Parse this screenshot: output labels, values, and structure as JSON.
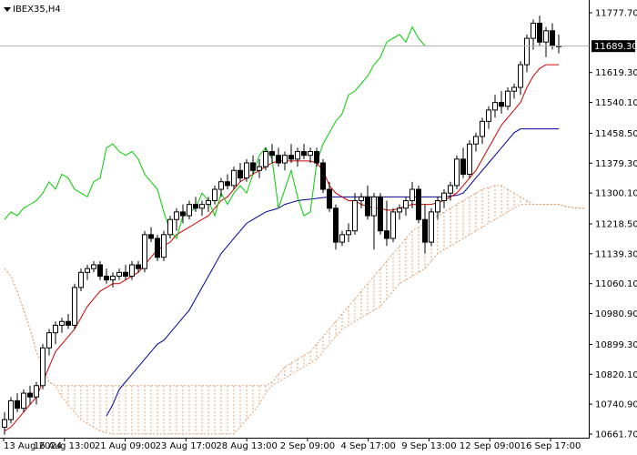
{
  "chart_data": {
    "type": "candlestick",
    "title": "IBEX35,H4",
    "ylim": [
      10661.7,
      11777.7
    ],
    "y_ticks": [
      "11777.70",
      "11619.30",
      "11540.10",
      "11458.50",
      "11379.30",
      "11300.10",
      "11218.50",
      "11139.30",
      "11060.10",
      "10980.90",
      "10899.30",
      "10820.10",
      "10740.90",
      "10661.70"
    ],
    "x_ticks": [
      "13 Aug 2024",
      "16 Aug 13:00",
      "21 Aug 09:00",
      "23 Aug 17:00",
      "28 Aug 13:00",
      "2 Sep 09:00",
      "4 Sep 17:00",
      "9 Sep 13:00",
      "12 Sep 09:00",
      "16 Sep 17:00"
    ],
    "current_price": "11689.30",
    "colors": {
      "tenkan": "#cc0000",
      "kijun": "#000099",
      "chikou": "#00cc00",
      "cloud": "#e0a070",
      "candle": "#000000",
      "background": "#ffffff",
      "price_tag_bg": "#000000"
    },
    "candles": [
      [
        10680,
        10720,
        10660,
        10700
      ],
      [
        10700,
        10760,
        10690,
        10750
      ],
      [
        10750,
        10770,
        10720,
        10730
      ],
      [
        10730,
        10780,
        10720,
        10770
      ],
      [
        10770,
        10790,
        10740,
        10760
      ],
      [
        10760,
        10800,
        10740,
        10790
      ],
      [
        10790,
        10900,
        10780,
        10890
      ],
      [
        10890,
        10940,
        10870,
        10930
      ],
      [
        10930,
        10960,
        10900,
        10950
      ],
      [
        10950,
        10970,
        10930,
        10960
      ],
      [
        10960,
        10980,
        10940,
        10950
      ],
      [
        10950,
        11060,
        10940,
        11050
      ],
      [
        11050,
        11100,
        11040,
        11090
      ],
      [
        11090,
        11110,
        11070,
        11100
      ],
      [
        11100,
        11120,
        11090,
        11110
      ],
      [
        11110,
        11120,
        11070,
        11080
      ],
      [
        11080,
        11100,
        11060,
        11070
      ],
      [
        11070,
        11090,
        11050,
        11080
      ],
      [
        11080,
        11100,
        11070,
        11090
      ],
      [
        11090,
        11110,
        11070,
        11080
      ],
      [
        11080,
        11120,
        11070,
        11110
      ],
      [
        11110,
        11120,
        11090,
        11100
      ],
      [
        11100,
        11200,
        11090,
        11190
      ],
      [
        11190,
        11210,
        11170,
        11180
      ],
      [
        11180,
        11190,
        11120,
        11130
      ],
      [
        11130,
        11200,
        11120,
        11190
      ],
      [
        11190,
        11240,
        11180,
        11230
      ],
      [
        11230,
        11260,
        11200,
        11250
      ],
      [
        11250,
        11270,
        11220,
        11240
      ],
      [
        11240,
        11280,
        11230,
        11270
      ],
      [
        11270,
        11290,
        11250,
        11260
      ],
      [
        11260,
        11280,
        11240,
        11270
      ],
      [
        11270,
        11290,
        11250,
        11280
      ],
      [
        11280,
        11320,
        11270,
        11310
      ],
      [
        11310,
        11340,
        11290,
        11330
      ],
      [
        11330,
        11350,
        11310,
        11320
      ],
      [
        11320,
        11370,
        11310,
        11360
      ],
      [
        11360,
        11380,
        11330,
        11340
      ],
      [
        11340,
        11390,
        11330,
        11380
      ],
      [
        11380,
        11400,
        11350,
        11360
      ],
      [
        11360,
        11390,
        11340,
        11370
      ],
      [
        11370,
        11420,
        11360,
        11410
      ],
      [
        11410,
        11430,
        11380,
        11400
      ],
      [
        11400,
        11420,
        11370,
        11380
      ],
      [
        11380,
        11410,
        11360,
        11400
      ],
      [
        11400,
        11430,
        11380,
        11390
      ],
      [
        11390,
        11420,
        11370,
        11410
      ],
      [
        11410,
        11430,
        11390,
        11400
      ],
      [
        11400,
        11420,
        11380,
        11410
      ],
      [
        11410,
        11420,
        11370,
        11380
      ],
      [
        11380,
        11390,
        11300,
        11310
      ],
      [
        11310,
        11330,
        11250,
        11260
      ],
      [
        11260,
        11270,
        11150,
        11170
      ],
      [
        11170,
        11200,
        11160,
        11190
      ],
      [
        11190,
        11220,
        11170,
        11200
      ],
      [
        11200,
        11300,
        11190,
        11280
      ],
      [
        11280,
        11300,
        11260,
        11290
      ],
      [
        11290,
        11320,
        11230,
        11240
      ],
      [
        11240,
        11300,
        11150,
        11290
      ],
      [
        11290,
        11300,
        11190,
        11200
      ],
      [
        11200,
        11280,
        11160,
        11180
      ],
      [
        11180,
        11260,
        11170,
        11250
      ],
      [
        11250,
        11270,
        11230,
        11260
      ],
      [
        11260,
        11290,
        11240,
        11280
      ],
      [
        11280,
        11330,
        11260,
        11310
      ],
      [
        11310,
        11320,
        11220,
        11230
      ],
      [
        11230,
        11270,
        11140,
        11170
      ],
      [
        11170,
        11260,
        11160,
        11250
      ],
      [
        11250,
        11290,
        11230,
        11280
      ],
      [
        11280,
        11310,
        11260,
        11300
      ],
      [
        11300,
        11330,
        11280,
        11320
      ],
      [
        11320,
        11400,
        11310,
        11390
      ],
      [
        11390,
        11420,
        11340,
        11350
      ],
      [
        11350,
        11440,
        11340,
        11430
      ],
      [
        11430,
        11460,
        11410,
        11450
      ],
      [
        11450,
        11500,
        11430,
        11490
      ],
      [
        11490,
        11530,
        11470,
        11520
      ],
      [
        11520,
        11560,
        11500,
        11540
      ],
      [
        11540,
        11570,
        11510,
        11530
      ],
      [
        11530,
        11580,
        11520,
        11570
      ],
      [
        11570,
        11590,
        11550,
        11580
      ],
      [
        11580,
        11650,
        11560,
        11640
      ],
      [
        11640,
        11720,
        11620,
        11710
      ],
      [
        11710,
        11760,
        11680,
        11750
      ],
      [
        11750,
        11770,
        11690,
        11700
      ],
      [
        11700,
        11740,
        11660,
        11730
      ],
      [
        11730,
        11750,
        11680,
        11690
      ],
      [
        11690,
        11720,
        11670,
        11689.3
      ]
    ],
    "tenkan": [
      10670,
      10680,
      10700,
      10720,
      10740,
      10760,
      10800,
      10840,
      10880,
      10900,
      10920,
      10940,
      10970,
      11000,
      11020,
      11040,
      11050,
      11060,
      11060,
      11070,
      11080,
      11090,
      11110,
      11130,
      11150,
      11160,
      11170,
      11190,
      11200,
      11210,
      11220,
      11230,
      11240,
      11260,
      11280,
      11290,
      11310,
      11330,
      11340,
      11350,
      11360,
      11370,
      11380,
      11385,
      11385,
      11385,
      11385,
      11385,
      11385,
      11380,
      11360,
      11320,
      11300,
      11290,
      11280,
      11280,
      11270,
      11265,
      11260,
      11260,
      11255,
      11255,
      11260,
      11265,
      11270,
      11270,
      11270,
      11270,
      11275,
      11280,
      11290,
      11300,
      11320,
      11340,
      11360,
      11390,
      11420,
      11450,
      11480,
      11500,
      11520,
      11540,
      11580,
      11610,
      11630,
      11640,
      11640,
      11640
    ],
    "kijun": [
      null,
      null,
      null,
      null,
      null,
      null,
      null,
      null,
      null,
      null,
      null,
      null,
      null,
      null,
      null,
      null,
      10710,
      10740,
      10780,
      10800,
      10820,
      10840,
      10860,
      10880,
      10900,
      10910,
      10930,
      10950,
      10970,
      10990,
      11020,
      11050,
      11080,
      11110,
      11140,
      11160,
      11180,
      11200,
      11220,
      11230,
      11240,
      11250,
      11255,
      11260,
      11270,
      11275,
      11280,
      11282,
      11284,
      11286,
      11288,
      11290,
      11290,
      11290,
      11290,
      11290,
      11290,
      11290,
      11290,
      11290,
      11290,
      11290,
      11290,
      11290,
      11290,
      11290,
      11290,
      11290,
      11290,
      11290,
      11292,
      11294,
      11300,
      11320,
      11340,
      11360,
      11380,
      11400,
      11420,
      11440,
      11460,
      11470,
      11470,
      11470,
      11470,
      11470,
      11470,
      11470
    ],
    "chikou": [
      11230,
      11250,
      11240,
      11260,
      11270,
      11280,
      11300,
      11330,
      11310,
      11350,
      11340,
      11310,
      11300,
      11290,
      11330,
      11340,
      11420,
      11430,
      11410,
      11400,
      11410,
      11390,
      11350,
      11330,
      11310,
      11250,
      11200,
      11180,
      11240,
      11250,
      11260,
      11300,
      11280,
      11240,
      11300,
      11270,
      11300,
      11320,
      11300,
      11350,
      11400,
      11420,
      11390,
      11260,
      11310,
      11360,
      11290,
      11240,
      11250,
      11380,
      11430,
      11460,
      11490,
      11510,
      11560,
      11570,
      11590,
      11610,
      11640,
      11660,
      11700,
      11710,
      11720,
      11700,
      11740,
      11710,
      11690
    ],
    "cloud_a": [
      11100,
      11080,
      11040,
      10990,
      10940,
      10880,
      10840,
      10800,
      10790,
      10790,
      10790,
      10790,
      10790,
      10790,
      10790,
      10790,
      10790,
      10790,
      10790,
      10790,
      10790,
      10790,
      10790,
      10790,
      10790,
      10790,
      10790,
      10790,
      10790,
      10790,
      10790,
      10790,
      10790,
      10790,
      10790,
      10790,
      10790,
      10790,
      10790,
      10790,
      10790,
      10790,
      10800,
      10820,
      10840,
      10850,
      10860,
      10870,
      10880,
      10900,
      10920,
      10940,
      10960,
      10980,
      11000,
      11020,
      11040,
      11060,
      11080,
      11100,
      11120,
      11140,
      11160,
      11180,
      11200,
      11210,
      11220,
      11230,
      11240,
      11250,
      11260,
      11270,
      11280,
      11290,
      11300,
      11310,
      11315,
      11320,
      11320,
      11310,
      11300,
      11290,
      11280,
      11270,
      11270,
      11270,
      11270,
      11270,
      11265,
      11262,
      11260,
      11260,
      11260,
      11260,
      11260
    ],
    "cloud_b": [
      11100,
      11080,
      11040,
      10990,
      10940,
      10880,
      10840,
      10800,
      10790,
      10760,
      10740,
      10720,
      10700,
      10690,
      10680,
      10670,
      10665,
      10662,
      10662,
      10662,
      10662,
      10662,
      10662,
      10662,
      10662,
      10662,
      10662,
      10662,
      10662,
      10662,
      10662,
      10662,
      10662,
      10662,
      10662,
      10662,
      10662,
      10680,
      10700,
      10720,
      10740,
      10770,
      10790,
      10800,
      10810,
      10820,
      10830,
      10840,
      10850,
      10860,
      10880,
      10900,
      10920,
      10940,
      10950,
      10960,
      10970,
      10980,
      10990,
      11000,
      11020,
      11040,
      11060,
      11070,
      11080,
      11090,
      11100,
      11120,
      11140,
      11150,
      11160,
      11170,
      11180,
      11190,
      11200,
      11210,
      11220,
      11230,
      11240,
      11250,
      11260,
      11270,
      11270,
      11270,
      11270,
      11270,
      11270,
      11270,
      11265,
      11262,
      11260,
      11260,
      11260,
      11260,
      11260
    ]
  }
}
